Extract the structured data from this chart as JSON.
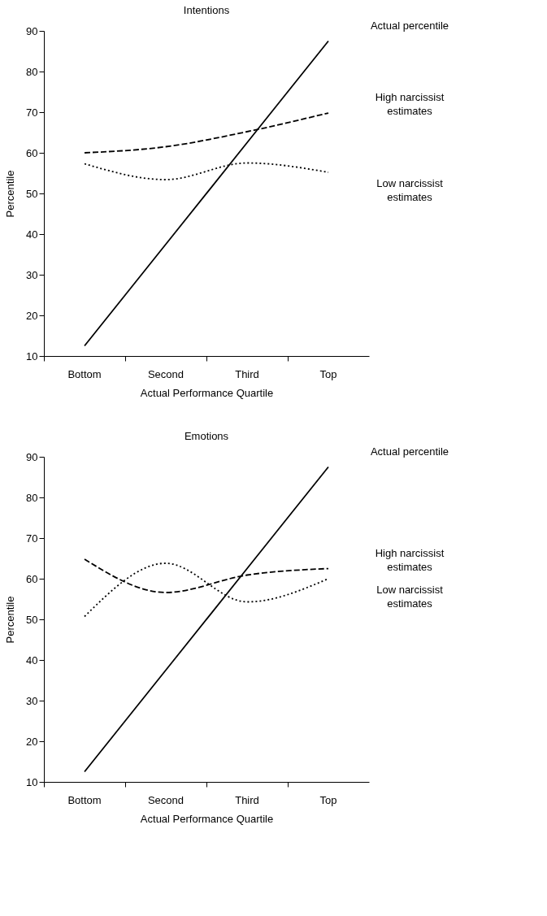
{
  "chart_data": [
    {
      "type": "line",
      "title": "Intentions",
      "xlabel": "Actual Performance Quartile",
      "ylabel": "Percentile",
      "categories": [
        "Bottom",
        "Second",
        "Third",
        "Top"
      ],
      "ylim": [
        10,
        90
      ],
      "yticks": [
        10,
        20,
        30,
        40,
        50,
        60,
        70,
        80,
        90
      ],
      "grid": false,
      "series": [
        {
          "name": "Actual percentile",
          "color": "#000000",
          "line_style": "solid",
          "values": [
            12.5,
            37.5,
            62.5,
            87.5
          ]
        },
        {
          "name": "High narcissist estimates",
          "color": "#000000",
          "line_style": "dashed",
          "values": [
            60,
            61.5,
            65.2,
            69.8
          ]
        },
        {
          "name": "Low narcissist estimates",
          "color": "#000000",
          "line_style": "dotted",
          "values": [
            57.3,
            53.4,
            57.5,
            55.2
          ]
        }
      ]
    },
    {
      "type": "line",
      "title": "Emotions",
      "xlabel": "Actual Performance Quartile",
      "ylabel": "Percentile",
      "categories": [
        "Bottom",
        "Second",
        "Third",
        "Top"
      ],
      "ylim": [
        10,
        90
      ],
      "yticks": [
        10,
        20,
        30,
        40,
        50,
        60,
        70,
        80,
        90
      ],
      "grid": false,
      "series": [
        {
          "name": "Actual percentile",
          "color": "#000000",
          "line_style": "solid",
          "values": [
            12.5,
            37.5,
            62.5,
            87.5
          ]
        },
        {
          "name": "High narcissist estimates",
          "color": "#000000",
          "line_style": "dashed",
          "values": [
            64.8,
            56.6,
            60.9,
            62.5
          ]
        },
        {
          "name": "Low narcissist estimates",
          "color": "#000000",
          "line_style": "dotted",
          "values": [
            50.7,
            63.8,
            54.3,
            60.0
          ]
        }
      ]
    }
  ]
}
